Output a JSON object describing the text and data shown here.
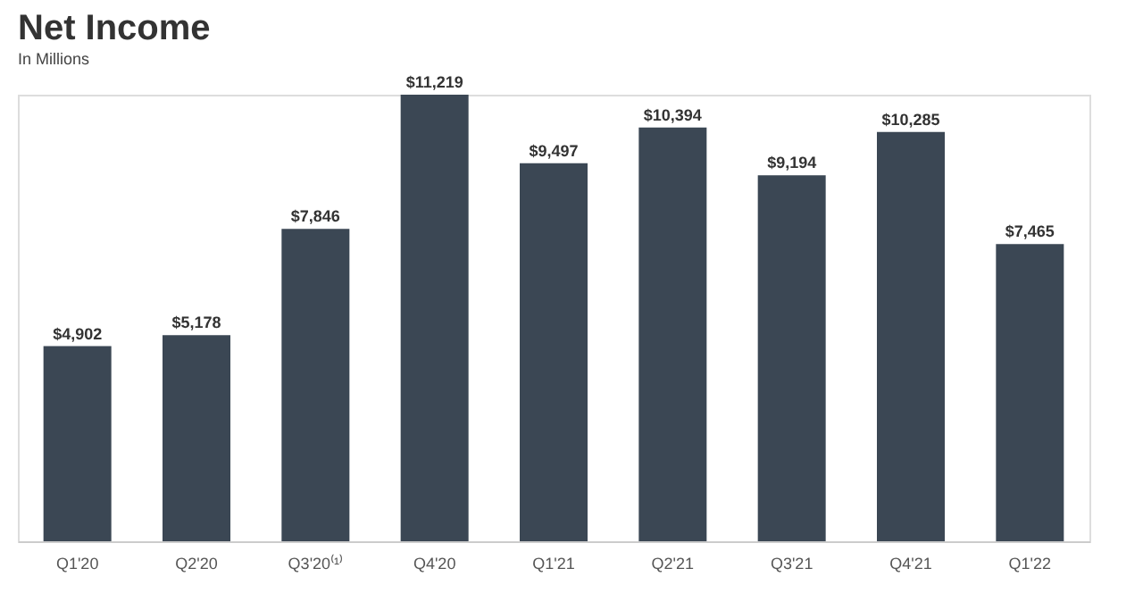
{
  "chart_data": {
    "type": "bar",
    "title": "Net Income",
    "subtitle": "In Millions",
    "categories": [
      "Q1'20",
      "Q2'20",
      "Q3'20⁽¹⁾",
      "Q4'20",
      "Q1'21",
      "Q2'21",
      "Q3'21",
      "Q4'21",
      "Q1'22"
    ],
    "values": [
      4902,
      5178,
      7846,
      11219,
      9497,
      10394,
      9194,
      10285,
      7465
    ],
    "value_labels": [
      "$4,902",
      "$5,178",
      "$7,846",
      "$11,219",
      "$9,497",
      "$10,394",
      "$9,194",
      "$10,285",
      "$7,465"
    ],
    "color": "#3b4754",
    "grid": false,
    "tick_labels": "x"
  }
}
